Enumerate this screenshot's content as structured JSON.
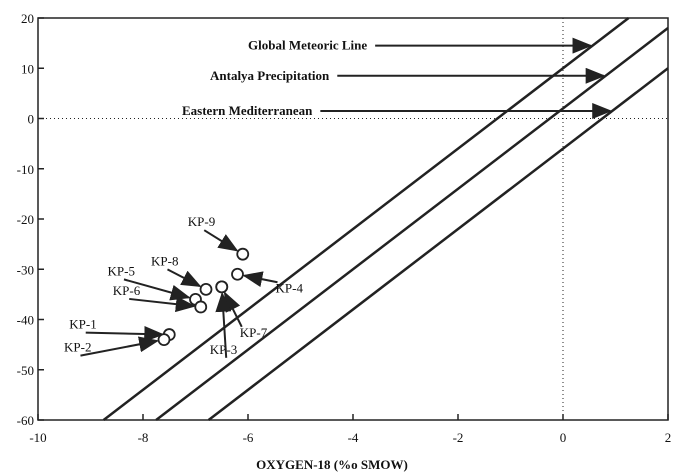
{
  "chart_data": {
    "type": "scatter",
    "title": "",
    "xlabel": "OXYGEN-18 (%o SMOW)",
    "ylabel": "",
    "xlim": [
      -10,
      2
    ],
    "ylim": [
      -60,
      20
    ],
    "x_ticks": [
      "-10",
      "-8",
      "-6",
      "-4",
      "-2",
      "0",
      "2"
    ],
    "y_ticks": [
      "20",
      "10",
      "0",
      "-10",
      "-20",
      "-30",
      "-40",
      "-50",
      "-60"
    ],
    "grid": false,
    "reference_lines": {
      "x": 0,
      "y": 0,
      "style": "dotted"
    },
    "lines": [
      {
        "name": "Global Meteoric Line",
        "slope": 8,
        "intercept": 10
      },
      {
        "name": "Antalya Precipitation",
        "slope": 8,
        "intercept": 2
      },
      {
        "name": "Eastern Mediterranean",
        "slope": 8,
        "intercept": -6
      }
    ],
    "points": [
      {
        "label": "KP-9",
        "x": -6.1,
        "y": -27
      },
      {
        "label": "KP-8",
        "x": -6.8,
        "y": -34
      },
      {
        "label": "KP-5",
        "x": -7.0,
        "y": -36
      },
      {
        "label": "KP-6",
        "x": -6.9,
        "y": -37.5
      },
      {
        "label": "KP-4",
        "x": -6.2,
        "y": -31
      },
      {
        "label": "KP-7",
        "x": -6.5,
        "y": -33.5
      },
      {
        "label": "KP-3",
        "x": -6.5,
        "y": -33.5
      },
      {
        "label": "KP-1",
        "x": -7.5,
        "y": -43
      },
      {
        "label": "KP-2",
        "x": -7.6,
        "y": -44
      }
    ],
    "colors": {
      "ink": "#222222",
      "background": "#ffffff"
    }
  }
}
